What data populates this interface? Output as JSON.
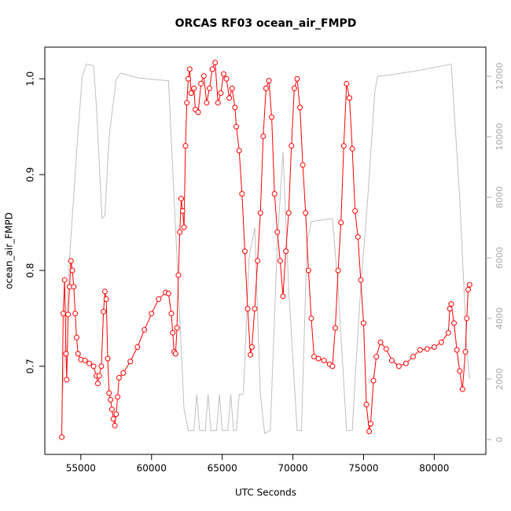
{
  "chart_data": {
    "type": "line",
    "title": "ORCAS RF03 ocean_air_FMPD",
    "xlabel": "UTC Seconds",
    "ylabel": "ocean_air_FMPD",
    "xlim": [
      52450,
      83650
    ],
    "xticks": [
      55000,
      60000,
      65000,
      70000,
      75000,
      80000
    ],
    "ylim": [
      0.608,
      1.033
    ],
    "yticks": [
      0.7,
      0.8,
      0.9,
      {
        "value": 1,
        "label": "1.0"
      }
    ],
    "y2lim": [
      -490,
      12960
    ],
    "y2ticks": [
      0,
      2000,
      4000,
      6000,
      8000,
      10000,
      12000
    ],
    "series": [
      {
        "color": "#ff0000",
        "marker": "circle",
        "x": [
          53650,
          53750,
          53850,
          53950,
          54000,
          54100,
          54200,
          54300,
          54400,
          54500,
          54600,
          54700,
          54800,
          55000,
          55300,
          55600,
          55900,
          56100,
          56200,
          56300,
          56450,
          56600,
          56700,
          56800,
          56900,
          57000,
          57100,
          57200,
          57300,
          57400,
          57500,
          57600,
          57700,
          58000,
          58500,
          59000,
          59500,
          60000,
          60500,
          61000,
          61200,
          61400,
          61500,
          61600,
          61700,
          61800,
          61900,
          62000,
          62100,
          62200,
          62300,
          62400,
          62500,
          62600,
          62700,
          62800,
          63000,
          63100,
          63300,
          63500,
          63700,
          63900,
          64100,
          64300,
          64500,
          64700,
          64900,
          65100,
          65300,
          65500,
          65700,
          65900,
          66000,
          66200,
          66400,
          66600,
          66800,
          67000,
          67100,
          67300,
          67500,
          67700,
          67900,
          68100,
          68300,
          68500,
          68700,
          68900,
          69100,
          69300,
          69500,
          69700,
          69900,
          70100,
          70300,
          70500,
          70700,
          70900,
          71100,
          71300,
          71500,
          71800,
          72200,
          72600,
          72800,
          73000,
          73200,
          73400,
          73600,
          73800,
          74000,
          74200,
          74400,
          74600,
          74800,
          75000,
          75200,
          75400,
          75500,
          75700,
          75900,
          76200,
          76600,
          77000,
          77500,
          78000,
          78500,
          79000,
          79500,
          80000,
          80500,
          81000,
          81100,
          81200,
          81400,
          81600,
          81800,
          82000,
          82200,
          82300,
          82400,
          82500
        ],
        "values": [
          0.626,
          0.755,
          0.79,
          0.713,
          0.686,
          0.754,
          0.783,
          0.81,
          0.8,
          0.783,
          0.755,
          0.73,
          0.713,
          0.707,
          0.706,
          0.703,
          0.7,
          0.69,
          0.682,
          0.69,
          0.7,
          0.757,
          0.778,
          0.77,
          0.708,
          0.672,
          0.665,
          0.655,
          0.645,
          0.638,
          0.65,
          0.668,
          0.688,
          0.693,
          0.705,
          0.72,
          0.738,
          0.755,
          0.77,
          0.777,
          0.776,
          0.755,
          0.735,
          0.715,
          0.713,
          0.74,
          0.795,
          0.84,
          0.875,
          0.862,
          0.845,
          0.93,
          0.975,
          1.0,
          1.01,
          0.985,
          0.99,
          0.968,
          0.965,
          0.995,
          1.003,
          0.975,
          0.99,
          1.01,
          1.017,
          0.975,
          0.985,
          1.005,
          1.0,
          0.98,
          0.99,
          0.97,
          0.95,
          0.925,
          0.88,
          0.82,
          0.76,
          0.712,
          0.72,
          0.76,
          0.81,
          0.86,
          0.94,
          0.99,
          0.998,
          0.96,
          0.88,
          0.84,
          0.81,
          0.773,
          0.82,
          0.86,
          0.93,
          0.99,
          1.0,
          0.97,
          0.91,
          0.86,
          0.8,
          0.75,
          0.71,
          0.708,
          0.706,
          0.702,
          0.7,
          0.74,
          0.8,
          0.85,
          0.93,
          0.995,
          0.98,
          0.927,
          0.862,
          0.835,
          0.79,
          0.745,
          0.66,
          0.632,
          0.64,
          0.685,
          0.71,
          0.725,
          0.718,
          0.706,
          0.7,
          0.703,
          0.71,
          0.717,
          0.718,
          0.72,
          0.725,
          0.735,
          0.76,
          0.765,
          0.745,
          0.717,
          0.695,
          0.676,
          0.715,
          0.75,
          0.78,
          0.785
        ]
      },
      {
        "color": "#c0c0c0",
        "axis": "y2",
        "x": [
          53700,
          54200,
          54700,
          55100,
          55400,
          55900,
          56100,
          56500,
          56700,
          57000,
          57500,
          57800,
          59000,
          60000,
          61200,
          61800,
          62300,
          62600,
          63000,
          63200,
          63400,
          63800,
          64000,
          64200,
          64600,
          64800,
          65000,
          65400,
          65600,
          65800,
          66000,
          66200,
          66500,
          66900,
          67300,
          67700,
          68000,
          68400,
          68900,
          69300,
          69700,
          70300,
          70600,
          71000,
          71300,
          72800,
          73200,
          73800,
          74200,
          74400,
          74800,
          75300,
          75800,
          76000,
          77000,
          79000,
          81200,
          81800,
          82300,
          82500
        ],
        "values": [
          1500,
          6000,
          9500,
          12000,
          12400,
          12350,
          11000,
          7300,
          7400,
          10000,
          11900,
          12100,
          11950,
          11900,
          11850,
          6000,
          1000,
          300,
          300,
          1500,
          300,
          300,
          1500,
          300,
          300,
          1500,
          300,
          300,
          1500,
          300,
          300,
          1500,
          1500,
          6000,
          7000,
          1500,
          200,
          300,
          6500,
          9500,
          5000,
          300,
          300,
          6500,
          7200,
          7300,
          5000,
          300,
          300,
          2000,
          5000,
          8000,
          11500,
          12000,
          12050,
          12200,
          12400,
          8000,
          3000,
          2000
        ]
      }
    ]
  }
}
